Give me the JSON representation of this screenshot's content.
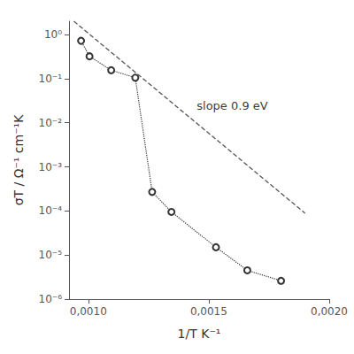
{
  "chart_data": {
    "type": "line",
    "log": "y",
    "xlabel": "1/T K⁻¹",
    "ylabel": "σT / Ω⁻¹ cm⁻¹K",
    "series": [
      {
        "type": "line",
        "color": "#333333",
        "marker": "open circle",
        "line_style": "dotted",
        "x": [
          0.00097,
          0.001005,
          0.001095,
          0.001195,
          0.001265,
          0.001345,
          0.00153,
          0.00166,
          0.0018
        ],
        "values": [
          0.72,
          0.32,
          0.155,
          0.105,
          0.00027,
          9.5e-05,
          1.5e-05,
          4.5e-06,
          2.6e-06
        ]
      },
      {
        "type": "line",
        "color": "#555555",
        "marker": "none",
        "line_style": "dashed",
        "x": [
          0.00094,
          0.0019
        ],
        "values": [
          2.0,
          8.840834e-05
        ]
      }
    ],
    "annotations": [
      {
        "text": "slope 0.9 eV",
        "x": 0.00145,
        "y": 0.018
      }
    ],
    "xlim": [
      0.00092,
      0.002
    ],
    "xticks": [
      {
        "value": 0.001,
        "label": "0,0010"
      },
      {
        "value": 0.0015,
        "label": "0,0015"
      },
      {
        "value": 0.002,
        "label": "0,0020"
      }
    ],
    "ylim": [
      1e-06,
      2.0
    ],
    "yticks": [
      {
        "value": 1e-06,
        "label": "10⁻⁶"
      },
      {
        "value": 1e-05,
        "label": "10⁻⁵"
      },
      {
        "value": 0.0001,
        "label": "10⁻⁴"
      },
      {
        "value": 0.001,
        "label": "10⁻³"
      },
      {
        "value": 0.01,
        "label": "10⁻²"
      },
      {
        "value": 0.1,
        "label": "10⁻¹"
      },
      {
        "value": 1,
        "label": "10⁰"
      }
    ],
    "grid": false
  }
}
